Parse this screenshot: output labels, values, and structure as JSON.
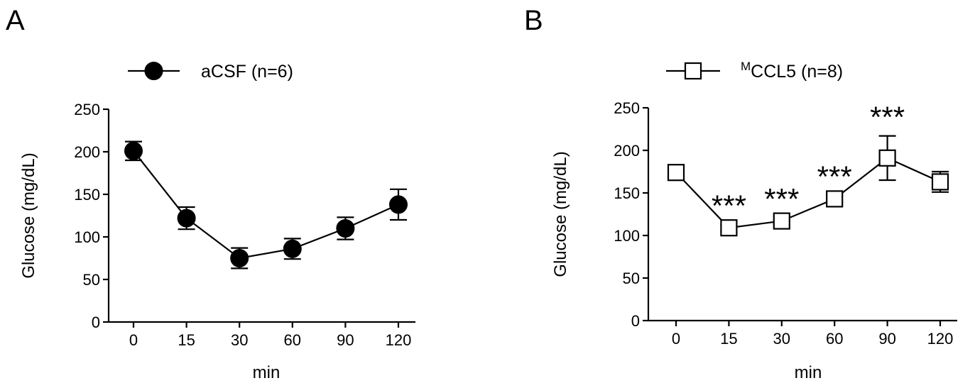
{
  "chart_data": [
    {
      "type": "line",
      "panel_label": "A",
      "legend": {
        "label": "aCSF (n=6)",
        "marker": "filled-circle"
      },
      "categories": [
        "0",
        "15",
        "30",
        "60",
        "90",
        "120"
      ],
      "series": [
        {
          "name": "aCSF (n=6)",
          "values": [
            201,
            122,
            75,
            86,
            110,
            138
          ],
          "errors": [
            11,
            13,
            12,
            12,
            13,
            18
          ]
        }
      ],
      "xlabel": "min",
      "ylabel": "Glucose (mg/dL)",
      "ylim": [
        0,
        250
      ],
      "yticks": [
        "0",
        "50",
        "100",
        "150",
        "200",
        "250"
      ],
      "annotations": []
    },
    {
      "type": "line",
      "panel_label": "B",
      "legend": {
        "label_sup": "M",
        "label": "CCL5 (n=8)",
        "marker": "open-square"
      },
      "categories": [
        "0",
        "15",
        "30",
        "60",
        "90",
        "120"
      ],
      "series": [
        {
          "name": "MCCL5 (n=8)",
          "values": [
            174,
            109,
            117,
            143,
            191,
            163
          ],
          "errors": [
            4,
            4,
            4,
            4,
            26,
            12
          ]
        }
      ],
      "xlabel": "min",
      "ylabel": "Glucose (mg/dL)",
      "ylim": [
        0,
        250
      ],
      "yticks": [
        "0",
        "50",
        "100",
        "150",
        "200",
        "250"
      ],
      "annotations": [
        {
          "category_index": 1,
          "text": "***"
        },
        {
          "category_index": 2,
          "text": "***"
        },
        {
          "category_index": 3,
          "text": "***"
        },
        {
          "category_index": 4,
          "text": "***"
        }
      ]
    }
  ]
}
